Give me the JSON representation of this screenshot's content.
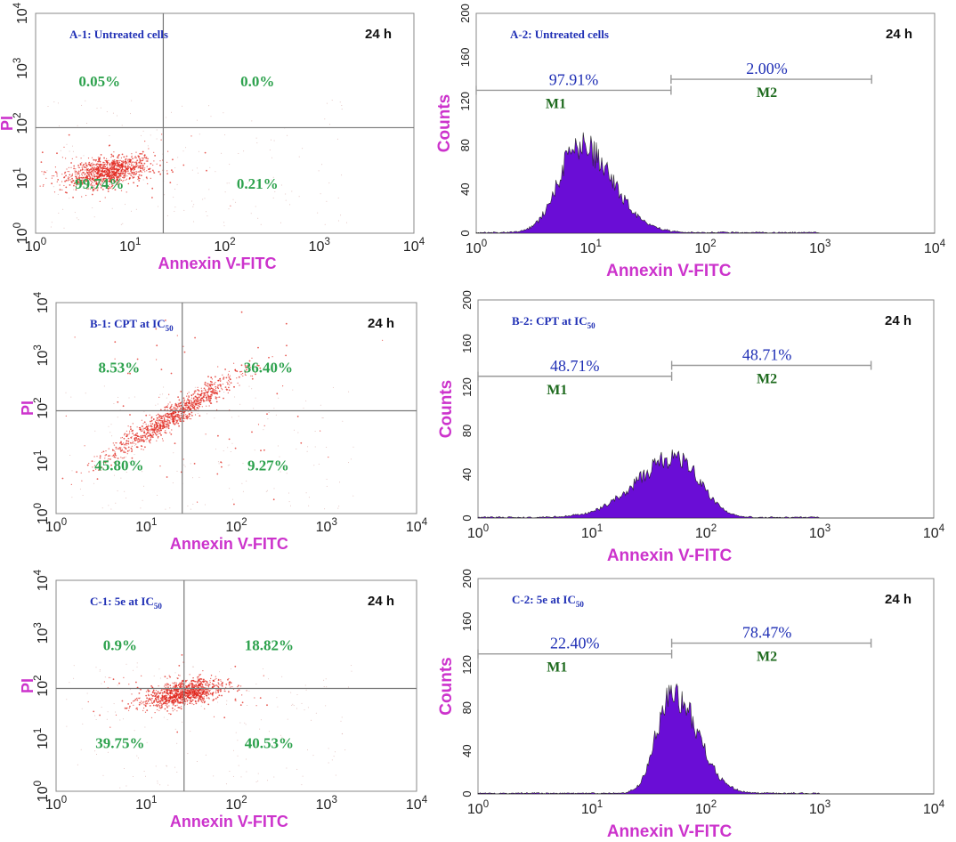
{
  "chart_data": [
    {
      "id": "A-1",
      "type": "scatter",
      "title": "A-1: Untreated cells",
      "time": "24 h",
      "xlabel": "Annexin V-FITC",
      "ylabel": "PI",
      "xlim_log": [
        0,
        4
      ],
      "ylim_log": [
        0,
        4
      ],
      "quadrant_x": 1.35,
      "quadrant_y": 1.92,
      "quadrants": {
        "upper_left": "0.05%",
        "upper_right": "0.0%",
        "lower_left": "99.74%",
        "lower_right": "0.21%"
      },
      "cluster": {
        "cx": 0.78,
        "cy": 1.12,
        "sx": 0.22,
        "sy": 0.14,
        "rho": 0.45
      }
    },
    {
      "id": "A-2",
      "type": "histogram",
      "title": "A-2: Untreated cells",
      "time": "24 h",
      "xlabel": "Annexin V-FITC",
      "ylabel": "Counts",
      "xlim_log": [
        0,
        4
      ],
      "ylim": [
        0,
        200
      ],
      "peak": {
        "center_log": 0.9,
        "height": 80,
        "sigma_left": 0.18,
        "sigma_right": 0.28
      },
      "gates": [
        {
          "name": "M1",
          "pct": "97.91%",
          "from_log": 0.0,
          "to_log": 1.7,
          "y": 130
        },
        {
          "name": "M2",
          "pct": "2.00%",
          "from_log": 1.7,
          "to_log": 3.45,
          "y": 140
        }
      ]
    },
    {
      "id": "B-1",
      "type": "scatter",
      "title": "B-1: CPT at IC",
      "title_sub": "50",
      "time": "24 h",
      "xlabel": "Annexin V-FITC",
      "ylabel": "PI",
      "xlim_log": [
        0,
        4
      ],
      "ylim_log": [
        0,
        4
      ],
      "quadrant_x": 1.4,
      "quadrant_y": 1.95,
      "quadrants": {
        "upper_left": "8.53%",
        "upper_right": "36.40%",
        "lower_left": "45.80%",
        "lower_right": "9.27%"
      },
      "cluster": {
        "cx": 1.3,
        "cy": 1.85,
        "sx": 0.38,
        "sy": 0.42,
        "rho": 0.96
      }
    },
    {
      "id": "B-2",
      "type": "histogram",
      "title": "B-2: CPT at IC",
      "title_sub": "50",
      "time": "24 h",
      "xlabel": "Annexin V-FITC",
      "ylabel": "Counts",
      "xlim_log": [
        0,
        4
      ],
      "ylim": [
        0,
        200
      ],
      "peak": {
        "center_log": 1.75,
        "height": 55,
        "sigma_left": 0.35,
        "sigma_right": 0.2
      },
      "gates": [
        {
          "name": "M1",
          "pct": "48.71%",
          "from_log": 0.0,
          "to_log": 1.7,
          "y": 130
        },
        {
          "name": "M2",
          "pct": "48.71%",
          "from_log": 1.7,
          "to_log": 3.45,
          "y": 140
        }
      ]
    },
    {
      "id": "C-1",
      "type": "scatter",
      "title": "C-1: 5e at IC",
      "title_sub": "50",
      "time": "24 h",
      "xlabel": "Annexin V-FITC",
      "ylabel": "PI",
      "xlim_log": [
        0,
        4
      ],
      "ylim_log": [
        0,
        4
      ],
      "quadrant_x": 1.42,
      "quadrant_y": 1.95,
      "quadrants": {
        "upper_left": "0.9%",
        "upper_right": "18.82%",
        "lower_left": "39.75%",
        "lower_right": "40.53%"
      },
      "cluster": {
        "cx": 1.4,
        "cy": 1.85,
        "sx": 0.22,
        "sy": 0.13,
        "rho": 0.5
      }
    },
    {
      "id": "C-2",
      "type": "histogram",
      "title": "C-2: 5e at IC",
      "title_sub": "50",
      "time": "24 h",
      "xlabel": "Annexin V-FITC",
      "ylabel": "Counts",
      "xlim_log": [
        0,
        4
      ],
      "ylim": [
        0,
        200
      ],
      "peak": {
        "center_log": 1.7,
        "height": 95,
        "sigma_left": 0.13,
        "sigma_right": 0.22
      },
      "gates": [
        {
          "name": "M1",
          "pct": "22.40%",
          "from_log": 0.0,
          "to_log": 1.7,
          "y": 130
        },
        {
          "name": "M2",
          "pct": "78.47%",
          "from_log": 1.7,
          "to_log": 3.45,
          "y": 140
        }
      ]
    }
  ],
  "styles": {
    "scatter_color": "#e0241b",
    "hist_fill": "#6a0dd6",
    "hist_edge": "#2a2a2a",
    "axis_title_color": "#cc33cc",
    "quad_pct_color": "#2ea24e",
    "panel_label_color": "#1f2fb5",
    "gate_pct_color": "#1f2fb5",
    "gate_name_color": "#1f6b1f"
  }
}
